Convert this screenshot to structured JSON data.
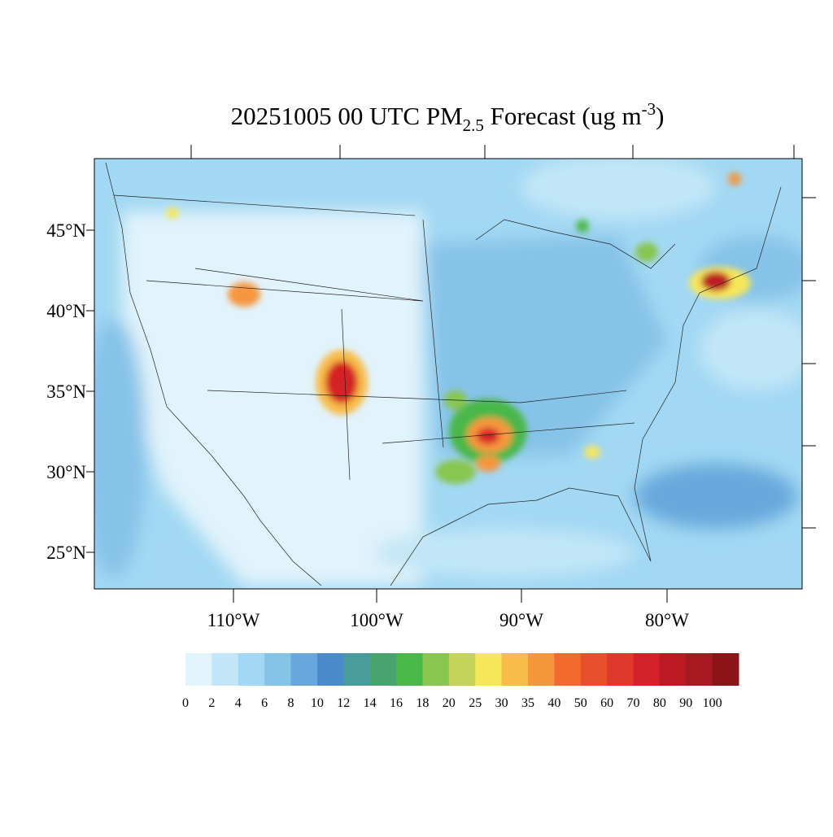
{
  "title": {
    "prefix": "20251005 00 UTC PM",
    "subscript": "2.5",
    "middle": " Forecast (ug m",
    "superscript": "-3",
    "suffix": ")"
  },
  "lat_labels": [
    "45°N",
    "40°N",
    "35°N",
    "30°N",
    "25°N"
  ],
  "lon_labels": [
    "110°W",
    "100°W",
    "90°W",
    "80°W"
  ],
  "colorbar": {
    "labels": [
      "0",
      "2",
      "4",
      "6",
      "8",
      "10",
      "12",
      "14",
      "16",
      "18",
      "20",
      "25",
      "30",
      "35",
      "40",
      "50",
      "60",
      "70",
      "80",
      "90",
      "100"
    ],
    "colors": [
      "#e1f3fb",
      "#c2e6f7",
      "#a2d8f3",
      "#86c3e8",
      "#68a8dc",
      "#4a8ccb",
      "#4a9c9c",
      "#48a46c",
      "#4ab848",
      "#88c650",
      "#c4d45a",
      "#f6e65a",
      "#f8bc4a",
      "#f6963c",
      "#f26a2c",
      "#e8502c",
      "#e0382c",
      "#d42028",
      "#bc1a22",
      "#a81820",
      "#8c1418"
    ]
  }
}
